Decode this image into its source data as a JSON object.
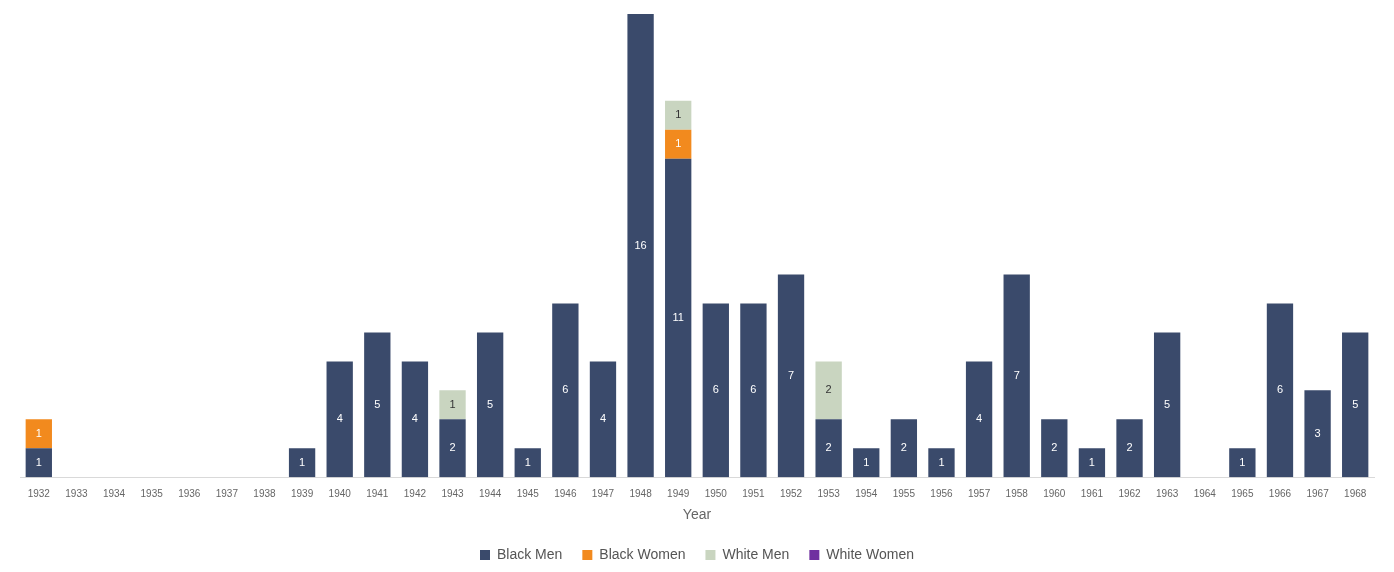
{
  "chart_data": {
    "type": "bar",
    "stacked": true,
    "xlabel": "Year",
    "legend": "bottom",
    "tick_labels": "x",
    "data_labels": true,
    "categories": [
      "1932",
      "1933",
      "1934",
      "1935",
      "1936",
      "1937",
      "1938",
      "1939",
      "1940",
      "1941",
      "1942",
      "1943",
      "1944",
      "1945",
      "1946",
      "1947",
      "1948",
      "1949",
      "1950",
      "1951",
      "1952",
      "1953",
      "1954",
      "1955",
      "1956",
      "1957",
      "1958",
      "1960",
      "1961",
      "1962",
      "1963",
      "1964",
      "1965",
      "1966",
      "1967",
      "1968"
    ],
    "series": [
      {
        "name": "Black Men",
        "color": "#3a4a6b",
        "values": [
          1,
          null,
          null,
          null,
          null,
          null,
          null,
          1,
          4,
          5,
          4,
          2,
          5,
          1,
          6,
          4,
          16,
          11,
          6,
          6,
          7,
          2,
          1,
          2,
          1,
          4,
          7,
          2,
          1,
          2,
          5,
          null,
          1,
          6,
          3,
          5
        ]
      },
      {
        "name": "Black Women",
        "color": "#f28a1e",
        "values": [
          1,
          null,
          null,
          null,
          null,
          null,
          null,
          null,
          null,
          null,
          null,
          null,
          null,
          null,
          null,
          null,
          null,
          1,
          null,
          null,
          null,
          null,
          null,
          null,
          null,
          null,
          null,
          null,
          null,
          null,
          null,
          null,
          null,
          null,
          null,
          null
        ]
      },
      {
        "name": "White Men",
        "color": "#c9d5c0",
        "values": [
          null,
          null,
          null,
          null,
          null,
          null,
          null,
          null,
          null,
          null,
          null,
          1,
          null,
          null,
          null,
          null,
          null,
          1,
          null,
          null,
          null,
          2,
          null,
          null,
          null,
          null,
          null,
          null,
          null,
          null,
          null,
          null,
          null,
          null,
          null,
          null
        ]
      },
      {
        "name": "White Women",
        "color": "#7030a0",
        "values": [
          null,
          null,
          null,
          null,
          null,
          null,
          null,
          null,
          null,
          null,
          null,
          null,
          null,
          null,
          null,
          null,
          null,
          null,
          null,
          null,
          null,
          null,
          null,
          null,
          null,
          null,
          null,
          null,
          null,
          null,
          null,
          null,
          null,
          null,
          null,
          null
        ]
      }
    ]
  }
}
